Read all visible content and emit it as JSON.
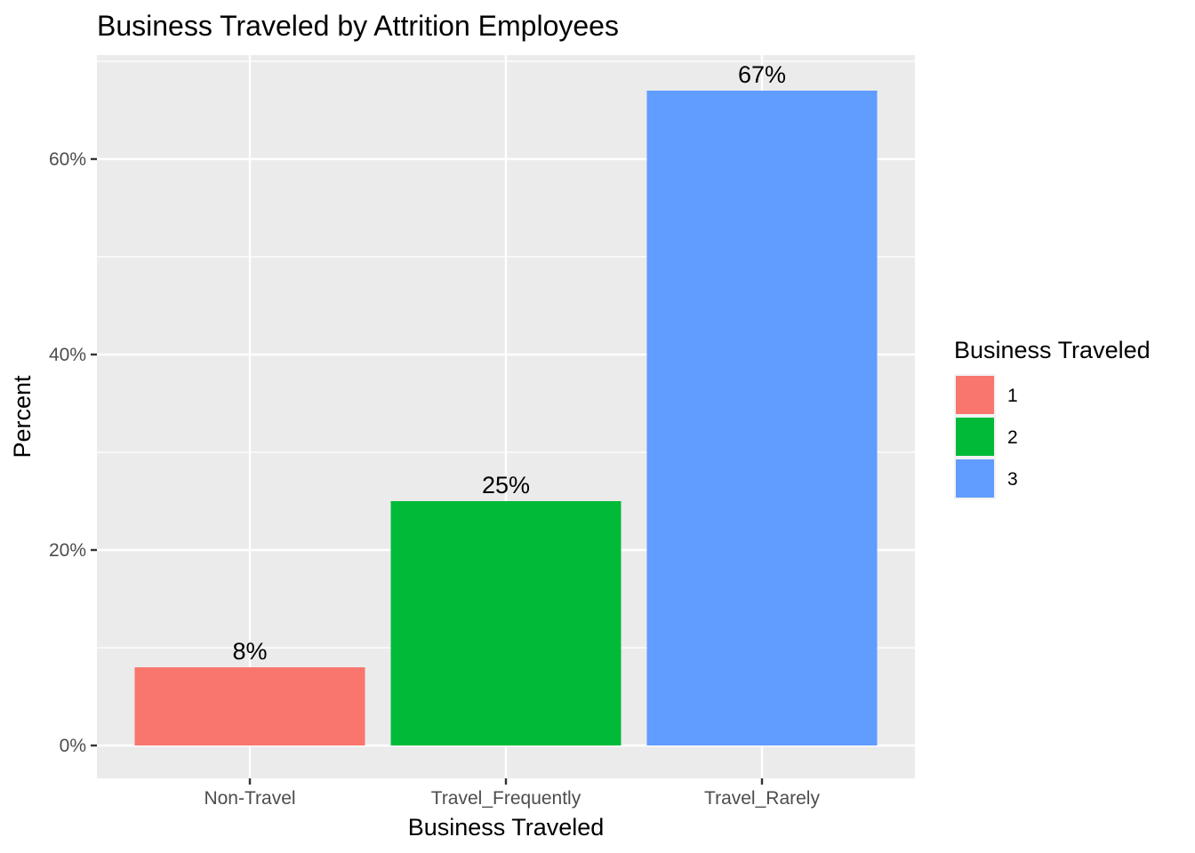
{
  "chart_data": {
    "type": "bar",
    "title": "Business Traveled by Attrition Employees",
    "xlabel": "Business Traveled",
    "ylabel": "Percent",
    "categories": [
      "Non-Travel",
      "Travel_Frequently",
      "Travel_Rarely"
    ],
    "values": [
      8,
      25,
      67
    ],
    "data_labels": [
      "8%",
      "25%",
      "67%"
    ],
    "colors": [
      "#F8766D",
      "#00BA38",
      "#619CFF"
    ],
    "ylim": [
      0,
      70
    ],
    "yticks": [
      0,
      20,
      40,
      60
    ],
    "ytick_labels": [
      "0%",
      "20%",
      "40%",
      "60%"
    ],
    "grid": true,
    "background": "#EBEBEB",
    "legend": {
      "title": "Business Traveled",
      "position": "right",
      "entries": [
        {
          "label": "1",
          "color": "#F8766D"
        },
        {
          "label": "2",
          "color": "#00BA38"
        },
        {
          "label": "3",
          "color": "#619CFF"
        }
      ]
    }
  }
}
